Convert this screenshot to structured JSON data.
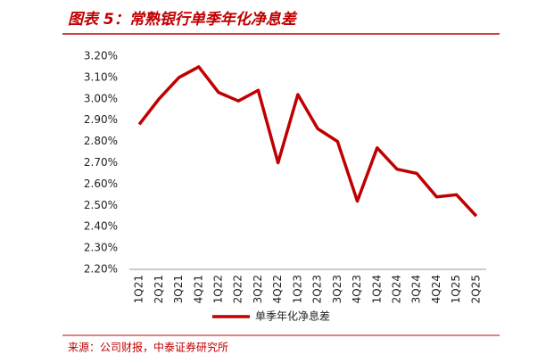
{
  "chart_data": {
    "type": "line",
    "title": "图表 5：常熟银行单季年化净息差",
    "categories": [
      "1Q21",
      "2Q21",
      "3Q21",
      "4Q21",
      "1Q22",
      "2Q22",
      "3Q22",
      "4Q22",
      "1Q23",
      "2Q23",
      "3Q23",
      "4Q23",
      "1Q24",
      "2Q24",
      "3Q24",
      "4Q24",
      "1Q25",
      "2Q25"
    ],
    "series": [
      {
        "name": "单季年化净息差",
        "color": "#c00000",
        "values": [
          2.88,
          3.0,
          3.1,
          3.15,
          3.03,
          2.99,
          3.04,
          2.7,
          3.02,
          2.86,
          2.8,
          2.52,
          2.77,
          2.67,
          2.65,
          2.54,
          2.55,
          2.45
        ]
      }
    ],
    "ylim": [
      2.2,
      3.2
    ],
    "yticks": [
      {
        "value": 2.2,
        "label": "2.20%"
      },
      {
        "value": 2.3,
        "label": "2.30%"
      },
      {
        "value": 2.4,
        "label": "2.40%"
      },
      {
        "value": 2.5,
        "label": "2.50%"
      },
      {
        "value": 2.6,
        "label": "2.60%"
      },
      {
        "value": 2.7,
        "label": "2.70%"
      },
      {
        "value": 2.8,
        "label": "2.80%"
      },
      {
        "value": 2.9,
        "label": "2.90%"
      },
      {
        "value": 3.0,
        "label": "3.00%"
      },
      {
        "value": 3.1,
        "label": "3.10%"
      },
      {
        "value": 3.2,
        "label": "3.20%"
      }
    ],
    "legend": "bottom",
    "source": "来源：公司财报，中泰证券研究所"
  }
}
